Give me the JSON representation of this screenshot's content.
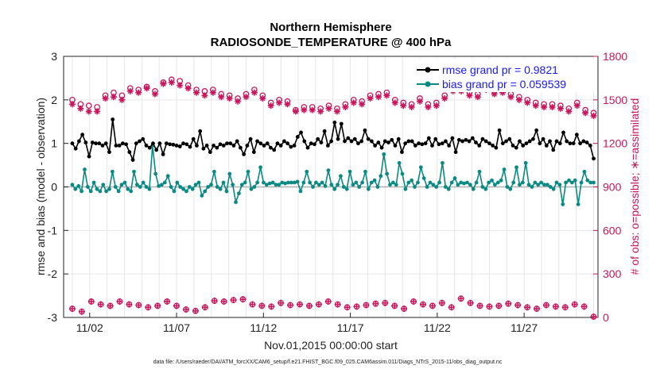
{
  "chart_data": {
    "type": "line",
    "title": "Northern Hemisphere",
    "subtitle": "RADIOSONDE_TEMPERATURE @ 400 hPa",
    "xlabel": "Nov.01,2015 00:00:00 start",
    "ylabel": "rmse and bias (model - observation)",
    "ylabel_right": "# of obs: o=possible; ∗=assimilated",
    "ylim": [
      -3,
      3
    ],
    "ylim_right": [
      0,
      1800
    ],
    "yticks": [
      "-3",
      "-2",
      "-1",
      "0",
      "1",
      "2",
      "3"
    ],
    "yticks_right": [
      "0",
      "300",
      "600",
      "900",
      "1200",
      "1500",
      "1800"
    ],
    "xlim": [
      0.5,
      31.25
    ],
    "xtick_labels": [
      {
        "x": 2,
        "label": "11/02"
      },
      {
        "x": 7,
        "label": "11/07"
      },
      {
        "x": 12,
        "label": "11/12"
      },
      {
        "x": 17,
        "label": "11/17"
      },
      {
        "x": 22,
        "label": "11/22"
      },
      {
        "x": 27,
        "label": "11/27"
      }
    ],
    "legend": [
      "rmse grand pr = 0.9821",
      "bias grand pr = 0.059539"
    ],
    "legend_position": "top-right",
    "footer": "data file: /Users/raeder/DAI/ATM_forcXX/CAM6_setup/f.e21.FHIST_BGC.f09_025.CAM6assim.011/Diags_NTrS_2015-11/obs_diag_output.nc",
    "series": [
      {
        "name": "rmse",
        "color": "#000000",
        "values": [
          1.0,
          0.88,
          1.05,
          1.2,
          1.02,
          0.7,
          1.02,
          1.0,
          1.0,
          0.95,
          1.0,
          0.8,
          1.55,
          0.95,
          0.95,
          1.0,
          0.98,
          0.8,
          0.62,
          1.0,
          1.05,
          1.1,
          0.95,
          0.9,
          1.0,
          0.85,
          1.0,
          0.75,
          1.0,
          0.98,
          0.97,
          0.95,
          0.93,
          1.0,
          0.98,
          0.92,
          1.1,
          0.95,
          1.28,
          0.88,
          0.95,
          0.8,
          0.95,
          0.9,
          0.98,
          0.95,
          1.0,
          1.0,
          0.95,
          1.05,
          0.9,
          0.75,
          0.95,
          1.1,
          0.8,
          1.05,
          1.0,
          0.95,
          1.0,
          0.9,
          0.85,
          1.0,
          0.95,
          1.05,
          1.0,
          0.92,
          0.95,
          1.15,
          1.25,
          1.05,
          0.9,
          1.0,
          0.98,
          1.1,
          1.02,
          1.28,
          0.95,
          1.05,
          1.48,
          1.1,
          1.45,
          1.05,
          1.12,
          1.05,
          1.1,
          1.0,
          1.05,
          1.3,
          1.1,
          1.05,
          0.95,
          1.02,
          0.9,
          1.05,
          1.02,
          1.08,
          0.95,
          1.1,
          0.8,
          1.0,
          1.05,
          1.05,
          0.95,
          1.0,
          0.98,
          1.0,
          1.12,
          0.95,
          1.1,
          0.98,
          1.0,
          1.05,
          0.95,
          1.12,
          0.8,
          1.08,
          1.05,
          1.08,
          1.05,
          1.12,
          1.02,
          0.95,
          1.1,
          1.05,
          1.0,
          0.95,
          0.9,
          1.3,
          1.0,
          1.05,
          1.1,
          0.95,
          0.9,
          1.05,
          0.95,
          1.0,
          1.05,
          1.1,
          1.3,
          1.0,
          1.1,
          0.95,
          1.05,
          0.85,
          1.05,
          1.0,
          1.25,
          1.05,
          1.0,
          1.0,
          1.2,
          1.0,
          1.05,
          1.02,
          0.95,
          0.65
        ]
      },
      {
        "name": "bias",
        "color": "#0a8a82",
        "values": [
          0.05,
          -0.05,
          0.02,
          -0.1,
          0.4,
          0.0,
          -0.1,
          0.1,
          -0.05,
          -0.1,
          0.05,
          -0.1,
          -0.05,
          0.35,
          0.0,
          -0.1,
          0.05,
          0.1,
          -0.05,
          -0.1,
          0.35,
          0.05,
          0.0,
          0.1,
          0.0,
          -0.05,
          0.95,
          0.3,
          0.02,
          0.05,
          0.1,
          0.25,
          0.0,
          -0.1,
          0.1,
          0.0,
          -0.05,
          -0.1,
          0.0,
          -0.05,
          0.05,
          0.1,
          -0.2,
          -0.1,
          0.0,
          0.05,
          0.35,
          0.0,
          -0.05,
          0.1,
          -0.1,
          0.3,
          0.05,
          -0.35,
          -0.15,
          0.05,
          0.1,
          0.35,
          -0.05,
          0.0,
          0.1,
          0.45,
          0.1,
          0.05,
          0.08,
          0.1,
          0.05,
          0.05,
          0.1,
          0.08,
          0.1,
          0.1,
          0.1,
          0.12,
          -0.1,
          0.1,
          0.35,
          0.1,
          0.0,
          0.1,
          0.05,
          0.1,
          0.02,
          0.38,
          0.05,
          -0.05,
          0.05,
          0.25,
          0.0,
          -0.05,
          0.35,
          0.05,
          0.1,
          0.0,
          0.1,
          0.35,
          -0.05,
          0.1,
          0.15,
          0.0,
          0.25,
          0.75,
          0.3,
          0.05,
          0.1,
          0.05,
          0.55,
          0.3,
          -0.05,
          0.1,
          0.15,
          0.0,
          0.1,
          0.45,
          0.2,
          0.0,
          0.1,
          0.05,
          0.0,
          0.1,
          0.55,
          0.0,
          -0.05,
          0.1,
          0.2,
          0.05,
          0.1,
          0.08,
          0.1,
          0.05,
          -0.05,
          0.1,
          0.35,
          0.0,
          -0.05,
          0.1,
          0.15,
          0.05,
          0.1,
          0.15,
          0.4,
          0.0,
          -0.05,
          0.1,
          0.45,
          0.05,
          0.1,
          0.55,
          0.05,
          0.0,
          0.1,
          0.05,
          0.1,
          0.05,
          0.05,
          0.0,
          -0.05,
          0.1,
          0.05,
          -0.4,
          0.1,
          0.15,
          0.1,
          0.15,
          -0.4,
          0.1,
          0.35,
          0.15,
          0.1,
          0.1
        ]
      },
      {
        "name": "obs possible (daily peaks)",
        "color": "#c8175d",
        "axis": "right",
        "values": [
          1500,
          1470,
          1460,
          1450,
          1530,
          1550,
          1530,
          1580,
          1570,
          1590,
          1560,
          1620,
          1640,
          1630,
          1600,
          1570,
          1560,
          1570,
          1540,
          1530,
          1510,
          1540,
          1570,
          1530,
          1480,
          1500,
          1490,
          1430,
          1450,
          1450,
          1440,
          1460,
          1440,
          1470,
          1500,
          1490,
          1530,
          1540,
          1550,
          1500,
          1480,
          1470,
          1510,
          1470,
          1480,
          1530,
          1580,
          1580,
          1550,
          1540,
          1590,
          1560,
          1570,
          1540,
          1520,
          1500,
          1480,
          1470,
          1470,
          1460,
          1440,
          1480,
          1430,
          1410
        ]
      },
      {
        "name": "obs assimilated (daily peaks)",
        "color": "#c8175d",
        "axis": "right",
        "values": [
          1470,
          1440,
          1420,
          1420,
          1510,
          1520,
          1500,
          1560,
          1550,
          1580,
          1540,
          1610,
          1620,
          1600,
          1580,
          1550,
          1530,
          1550,
          1520,
          1510,
          1490,
          1520,
          1550,
          1510,
          1460,
          1480,
          1470,
          1420,
          1430,
          1430,
          1420,
          1440,
          1420,
          1450,
          1480,
          1470,
          1510,
          1520,
          1530,
          1480,
          1460,
          1450,
          1490,
          1450,
          1460,
          1510,
          1560,
          1560,
          1530,
          1520,
          1570,
          1540,
          1550,
          1520,
          1500,
          1480,
          1460,
          1450,
          1450,
          1440,
          1420,
          1460,
          1410,
          1390
        ]
      },
      {
        "name": "obs off-synoptic",
        "color": "#c8175d",
        "axis": "right",
        "values": [
          60,
          40,
          110,
          90,
          80,
          110,
          90,
          85,
          70,
          80,
          110,
          80,
          55,
          45,
          70,
          115,
          110,
          120,
          125,
          90,
          80,
          75,
          100,
          85,
          90,
          80,
          90,
          110,
          90,
          70,
          75,
          85,
          95,
          100,
          80,
          60,
          110,
          90,
          80,
          100,
          70,
          130,
          100,
          80,
          75,
          80,
          95,
          85,
          70,
          60,
          85,
          75,
          70,
          90,
          75,
          5
        ]
      }
    ]
  }
}
